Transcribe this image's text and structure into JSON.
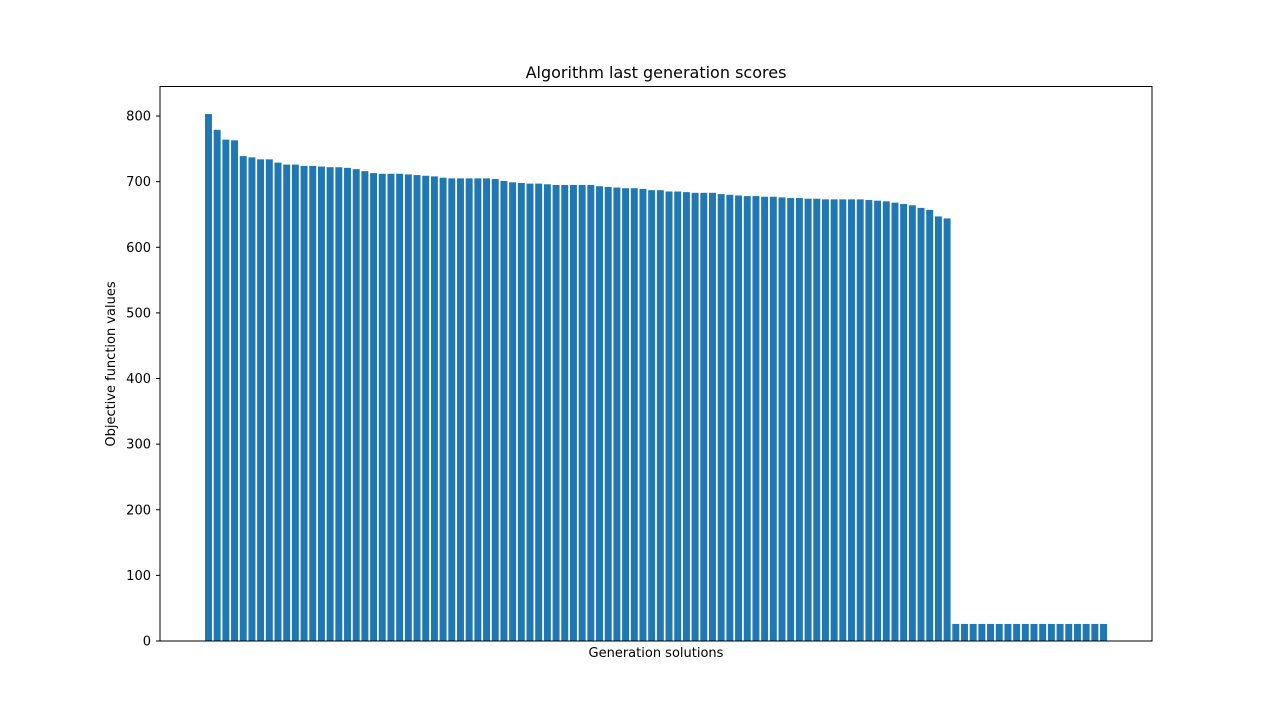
{
  "chart_data": {
    "type": "bar",
    "title": "Algorithm last generation scores",
    "xlabel": "Generation solutions",
    "ylabel": "Objective function values",
    "ylim": [
      0,
      845
    ],
    "yticks": [
      0,
      100,
      200,
      300,
      400,
      500,
      600,
      700,
      800
    ],
    "bar_color": "#1f77b4",
    "grid": false,
    "values": [
      803,
      779,
      764,
      763,
      739,
      737,
      734,
      734,
      729,
      726,
      726,
      724,
      724,
      723,
      722,
      722,
      721,
      719,
      716,
      713,
      712,
      712,
      712,
      711,
      710,
      709,
      708,
      706,
      705,
      705,
      705,
      705,
      705,
      704,
      701,
      699,
      698,
      697,
      697,
      696,
      695,
      695,
      695,
      695,
      695,
      693,
      692,
      691,
      690,
      690,
      689,
      687,
      687,
      685,
      685,
      684,
      683,
      683,
      683,
      681,
      680,
      679,
      678,
      678,
      677,
      677,
      676,
      675,
      675,
      674,
      674,
      673,
      673,
      673,
      673,
      673,
      672,
      671,
      670,
      668,
      666,
      664,
      660,
      657,
      647,
      644,
      26,
      26,
      26,
      26,
      26,
      26,
      26,
      26,
      26,
      26,
      26,
      26,
      26,
      26,
      26,
      26,
      26,
      26
    ]
  }
}
